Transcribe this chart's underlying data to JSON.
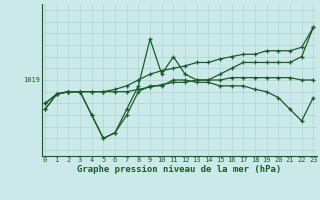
{
  "title": "Graphe pression niveau de la mer (hPa)",
  "bg_color": "#cce9e9",
  "grid_color": "#aad4d4",
  "line_color": "#1a5c28",
  "x_ticks": [
    0,
    1,
    2,
    3,
    4,
    5,
    6,
    7,
    8,
    9,
    10,
    11,
    12,
    13,
    14,
    15,
    16,
    17,
    18,
    19,
    20,
    21,
    22,
    23
  ],
  "series": [
    {
      "y": [
        1017.0,
        1017.8,
        1018.0,
        1018.0,
        1018.0,
        1018.0,
        1018.0,
        1018.0,
        1018.2,
        1018.4,
        1018.6,
        1018.8,
        1018.8,
        1019.0,
        1019.0,
        1019.0,
        1019.2,
        1019.2,
        1019.2,
        1019.2,
        1019.2,
        1019.2,
        1019.0,
        1019.0
      ]
    },
    {
      "y": [
        1017.0,
        1017.8,
        1018.0,
        1018.0,
        1018.0,
        1018.0,
        1018.2,
        1018.5,
        1019.0,
        1019.5,
        1019.8,
        1020.0,
        1020.2,
        1020.5,
        1020.5,
        1020.8,
        1021.0,
        1021.2,
        1021.2,
        1021.5,
        1021.5,
        1021.5,
        1021.8,
        1023.5
      ]
    },
    {
      "y": [
        1016.5,
        1017.8,
        1018.0,
        1018.0,
        1016.0,
        1014.0,
        1014.5,
        1016.5,
        1018.5,
        1022.5,
        1019.5,
        1021.0,
        1019.5,
        1019.0,
        1019.0,
        1019.5,
        1020.0,
        1020.5,
        1020.5,
        1020.5,
        1020.5,
        1020.5,
        1021.0,
        1023.5
      ]
    },
    {
      "y": [
        1016.5,
        1017.8,
        1018.0,
        1018.0,
        1016.0,
        1014.0,
        1014.5,
        1016.0,
        1018.0,
        1018.5,
        1018.5,
        1019.0,
        1019.0,
        1018.8,
        1018.8,
        1018.5,
        1018.5,
        1018.5,
        1018.2,
        1018.0,
        1017.5,
        1016.5,
        1015.5,
        1017.5
      ]
    }
  ],
  "ylim": [
    1012.5,
    1025.5
  ],
  "y_label_val": 1019,
  "xlim": [
    -0.3,
    23.3
  ],
  "figsize": [
    3.2,
    2.0
  ],
  "dpi": 100,
  "title_fontsize": 6.5,
  "tick_fontsize": 5.0,
  "ytick_val": 1019
}
